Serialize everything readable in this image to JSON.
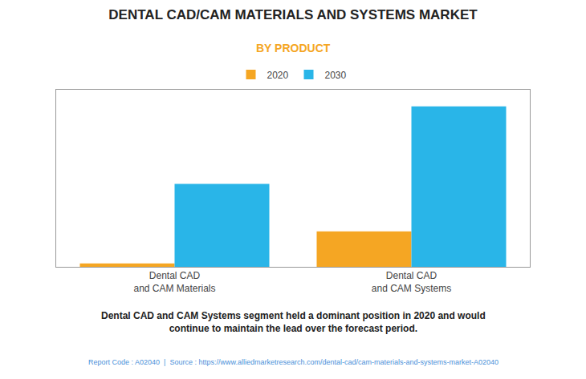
{
  "chart_data": {
    "type": "bar",
    "title": "DENTAL CAD/CAM MATERIALS AND SYSTEMS MARKET",
    "subtitle": "BY PRODUCT",
    "annotations": [
      "Dental CAD and CAM Systems segment held a dominant position in 2020 and would\ncontinue to maintain the lead over the forecast period.",
      "Report Code : A02040  |  Source : https://www.alliedmarketresearch.com/dental-cad/cam-materials-and-systems-market-A02040"
    ],
    "categories": [
      "Dental CAD\nand CAM Materials",
      "Dental CAD\nand CAM Systems"
    ],
    "series": [
      {
        "name": "2020",
        "color": "#F5A623",
        "values": [
          0.3,
          3.2
        ]
      },
      {
        "name": "2030",
        "color": "#29B5E8",
        "values": [
          7.5,
          14.5
        ]
      }
    ],
    "ylim": [
      0,
      16
    ],
    "yticks": [],
    "grid": false,
    "legend": "top",
    "tick_labels": "x"
  }
}
